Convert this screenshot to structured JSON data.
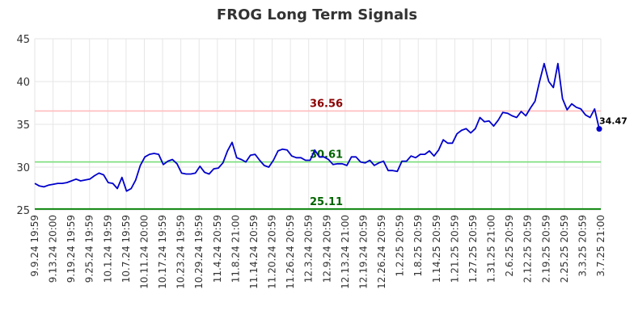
{
  "chart_data": {
    "type": "line",
    "title": "FROG Long Term Signals",
    "xlabel": "",
    "ylabel": "",
    "ylim": [
      25,
      45
    ],
    "yticks": [
      25,
      30,
      35,
      40,
      45
    ],
    "grid": true,
    "x_tick_labels": [
      "9.9.24 19:59",
      "9.13.24 20:00",
      "9.19.24 19:59",
      "9.25.24 19:59",
      "10.1.24 19:59",
      "10.7.24 19:59",
      "10.11.24 20:00",
      "10.17.24 19:59",
      "10.23.24 19:59",
      "10.29.24 19:59",
      "11.4.24 20:59",
      "11.8.24 21:00",
      "11.14.24 20:59",
      "11.20.24 20:59",
      "11.26.24 20:59",
      "12.3.24 20:59",
      "12.9.24 20:59",
      "12.13.24 21:00",
      "12.19.24 20:59",
      "12.26.24 20:59",
      "1.2.25 20:59",
      "1.8.25 20:59",
      "1.14.25 20:59",
      "1.21.25 20:59",
      "1.27.25 20:59",
      "1.31.25 21:00",
      "2.6.25 20:59",
      "2.12.25 20:59",
      "2.19.25 20:59",
      "2.25.25 20:59",
      "3.3.25 20:59",
      "3.7.25 21:00"
    ],
    "series": [
      {
        "values": [
          28.1,
          27.8,
          27.7,
          27.9,
          28.0,
          28.1,
          28.1,
          28.2,
          28.4,
          28.6,
          28.4,
          28.5,
          28.6,
          29.0,
          29.3,
          29.1,
          28.2,
          28.1,
          27.5,
          28.8,
          27.2,
          27.5,
          28.5,
          30.2,
          31.2,
          31.5,
          31.6,
          31.5,
          30.3,
          30.7,
          30.9,
          30.4,
          29.3,
          29.2,
          29.2,
          29.3,
          30.1,
          29.4,
          29.2,
          29.8,
          29.9,
          30.5,
          31.9,
          32.9,
          31.1,
          30.9,
          30.6,
          31.4,
          31.5,
          30.8,
          30.2,
          30.0,
          30.8,
          31.9,
          32.1,
          32.0,
          31.3,
          31.1,
          31.1,
          30.8,
          30.8,
          32.0,
          31.2,
          31.2,
          30.9,
          30.3,
          30.4,
          30.4,
          30.2,
          31.2,
          31.2,
          30.6,
          30.5,
          30.8,
          30.2,
          30.5,
          30.7,
          29.6,
          29.6,
          29.5,
          30.7,
          30.7,
          31.3,
          31.1,
          31.5,
          31.5,
          31.9,
          31.3,
          32.0,
          33.2,
          32.8,
          32.8,
          33.9,
          34.3,
          34.5,
          34.0,
          34.5,
          35.8,
          35.3,
          35.4,
          34.8,
          35.5,
          36.4,
          36.3,
          36.0,
          35.8,
          36.5,
          36.0,
          36.9,
          37.7,
          40.0,
          42.1,
          40.0,
          39.3,
          42.1,
          38.0,
          36.7,
          37.4,
          37.0,
          36.8,
          36.1,
          35.8,
          36.8,
          34.47
        ],
        "color": "#0000cc",
        "last_value_label": "34.47"
      }
    ],
    "reference_lines": [
      {
        "value": 36.56,
        "label": "36.56",
        "line_color": "#ffbbbb",
        "label_color": "#8b0000"
      },
      {
        "value": 30.61,
        "label": "30.61",
        "line_color": "#77dd77",
        "label_color": "#006400"
      },
      {
        "value": 25.11,
        "label": "25.11",
        "line_color": "#008000",
        "label_color": "#006400"
      }
    ]
  }
}
